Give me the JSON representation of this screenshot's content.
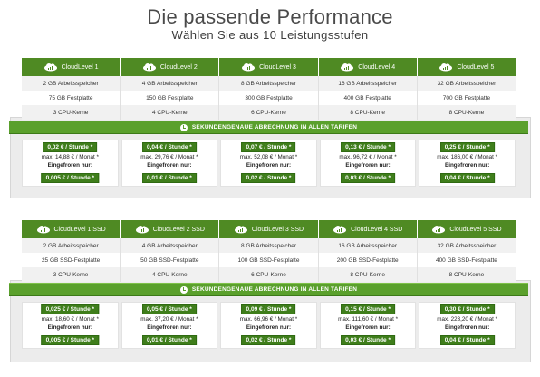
{
  "title": "Die passende Performance",
  "subtitle": "Wählen Sie aus 10 Leistungsstufen",
  "banner_text": "SEKUNDENGENAUE ABRECHNUNG IN ALLEN TARIFEN",
  "colors": {
    "header_green": "#4f8a23",
    "banner_green": "#5aa02c",
    "pill_green": "#3f7e1b"
  },
  "icons": {
    "plan": "cloud-signal-icon",
    "banner": "clock-icon"
  },
  "sections": [
    {
      "plans": [
        {
          "name": "CloudLevel 1",
          "ram": "2 GB Arbeitsspeicher",
          "disk": "75 GB Festplatte",
          "cpu": "3 CPU-Kerne",
          "price_hour": "0,02 € / Stunde *",
          "max_month": "max. 14,88 € / Monat *",
          "frozen_label": "Eingefroren nur:",
          "frozen_price": "0,005 € / Stunde *"
        },
        {
          "name": "CloudLevel 2",
          "ram": "4 GB Arbeitsspeicher",
          "disk": "150 GB Festplatte",
          "cpu": "4 CPU-Kerne",
          "price_hour": "0,04 € / Stunde *",
          "max_month": "max. 29,76 € / Monat *",
          "frozen_label": "Eingefroren nur:",
          "frozen_price": "0,01 € / Stunde *"
        },
        {
          "name": "CloudLevel 3",
          "ram": "8 GB Arbeitsspeicher",
          "disk": "300 GB Festplatte",
          "cpu": "6 CPU-Kerne",
          "price_hour": "0,07 € / Stunde *",
          "max_month": "max. 52,08 € / Monat *",
          "frozen_label": "Eingefroren nur:",
          "frozen_price": "0,02 € / Stunde *"
        },
        {
          "name": "CloudLevel 4",
          "ram": "16 GB Arbeitsspeicher",
          "disk": "400 GB Festplatte",
          "cpu": "8 CPU-Kerne",
          "price_hour": "0,13 € / Stunde *",
          "max_month": "max. 96,72 € / Monat *",
          "frozen_label": "Eingefroren nur:",
          "frozen_price": "0,03 € / Stunde *"
        },
        {
          "name": "CloudLevel 5",
          "ram": "32 GB Arbeitsspeicher",
          "disk": "700 GB Festplatte",
          "cpu": "8 CPU-Kerne",
          "price_hour": "0,25 € / Stunde *",
          "max_month": "max. 186,00 € / Monat *",
          "frozen_label": "Eingefroren nur:",
          "frozen_price": "0,04 € / Stunde *"
        }
      ]
    },
    {
      "plans": [
        {
          "name": "CloudLevel 1 SSD",
          "ram": "2 GB Arbeitsspeicher",
          "disk": "25 GB SSD-Festplatte",
          "cpu": "3 CPU-Kerne",
          "price_hour": "0,025 € / Stunde *",
          "max_month": "max. 18,60 € / Monat *",
          "frozen_label": "Eingefroren nur:",
          "frozen_price": "0,005 € / Stunde *"
        },
        {
          "name": "CloudLevel 2 SSD",
          "ram": "4 GB Arbeitsspeicher",
          "disk": "50 GB SSD-Festplatte",
          "cpu": "4 CPU-Kerne",
          "price_hour": "0,05 € / Stunde *",
          "max_month": "max. 37,20 € / Monat *",
          "frozen_label": "Eingefroren nur:",
          "frozen_price": "0,01 € / Stunde *"
        },
        {
          "name": "CloudLevel 3 SSD",
          "ram": "8 GB Arbeitsspeicher",
          "disk": "100 GB SSD-Festplatte",
          "cpu": "6 CPU-Kerne",
          "price_hour": "0,09 € / Stunde *",
          "max_month": "max. 66,96 € / Monat *",
          "frozen_label": "Eingefroren nur:",
          "frozen_price": "0,02 € / Stunde *"
        },
        {
          "name": "CloudLevel 4 SSD",
          "ram": "16 GB Arbeitsspeicher",
          "disk": "200 GB SSD-Festplatte",
          "cpu": "8 CPU-Kerne",
          "price_hour": "0,15 € / Stunde *",
          "max_month": "max. 111,60 € / Monat *",
          "frozen_label": "Eingefroren nur:",
          "frozen_price": "0,03 € / Stunde *"
        },
        {
          "name": "CloudLevel 5 SSD",
          "ram": "32 GB Arbeitsspeicher",
          "disk": "400 GB SSD-Festplatte",
          "cpu": "8 CPU-Kerne",
          "price_hour": "0,30 € / Stunde *",
          "max_month": "max. 223,20 € / Monat *",
          "frozen_label": "Eingefroren nur:",
          "frozen_price": "0,04 € / Stunde *"
        }
      ]
    }
  ]
}
